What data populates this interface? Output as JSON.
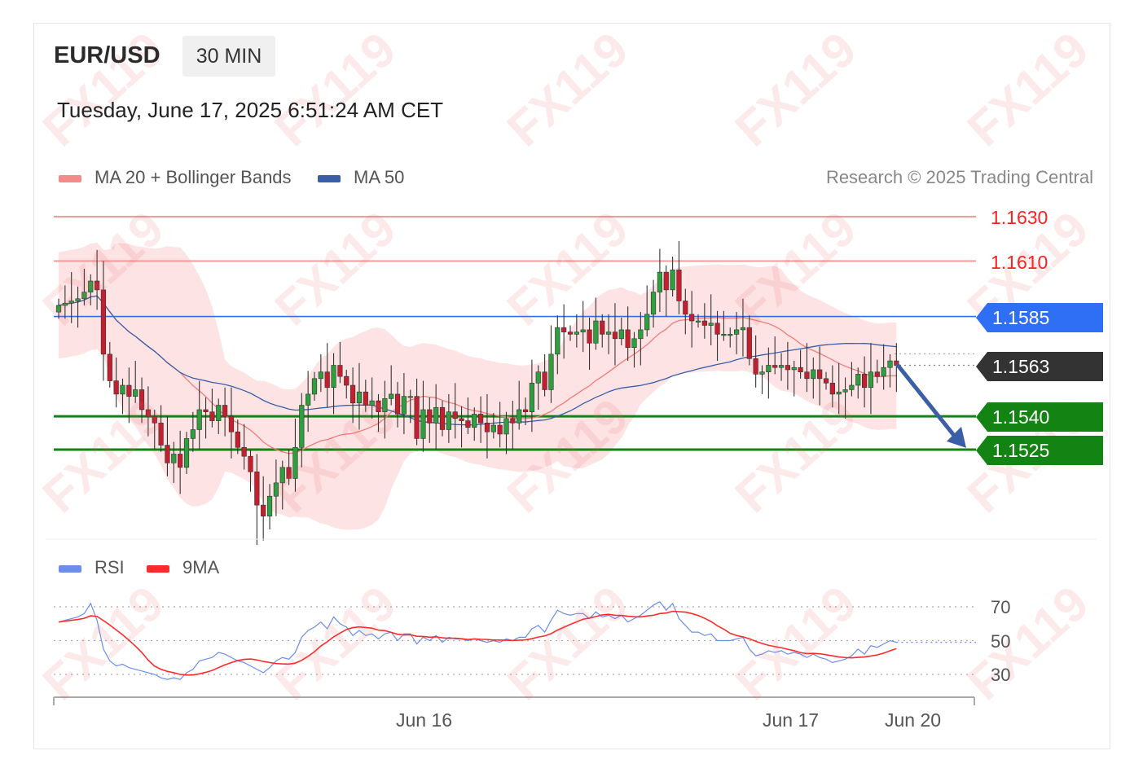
{
  "header": {
    "symbol": "EUR/USD",
    "timeframe": "30 MIN",
    "timestamp": "Tuesday, June 17, 2025 6:51:24 AM CET",
    "credit": "Research © 2025 Trading Central"
  },
  "legend": {
    "ma20_label": "MA 20 + Bollinger Bands",
    "ma50_label": "MA 50",
    "ma20_color": "#f38b8b",
    "ma50_color": "#3a5fa8"
  },
  "watermark": "FX119",
  "chart_data": [
    {
      "type": "candlestick",
      "title": "EUR/USD",
      "x_labels": [
        "Jun 16",
        "Jun 17",
        "Jun 20"
      ],
      "y_range": [
        1.1478,
        1.1635
      ],
      "levels": [
        {
          "label": "1.1630",
          "value": 1.163,
          "kind": "resistance",
          "color": "#ff3030"
        },
        {
          "label": "1.1610",
          "value": 1.161,
          "kind": "resistance",
          "color": "#ff3030"
        },
        {
          "label": "1.1585",
          "value": 1.1585,
          "kind": "pivot",
          "color": "#2f6ff5"
        },
        {
          "label": "1.1563",
          "value": 1.1563,
          "kind": "last",
          "color": "#333333"
        },
        {
          "label": "1.1540",
          "value": 1.154,
          "kind": "support",
          "color": "#138413"
        },
        {
          "label": "1.1525",
          "value": 1.1525,
          "kind": "support",
          "color": "#138413"
        }
      ],
      "closes": [
        1.159,
        1.1591,
        1.1592,
        1.1593,
        1.1596,
        1.1601,
        1.1597,
        1.1568,
        1.1556,
        1.155,
        1.1554,
        1.1549,
        1.1552,
        1.1543,
        1.154,
        1.1537,
        1.1527,
        1.1519,
        1.1523,
        1.1517,
        1.153,
        1.1534,
        1.1543,
        1.1542,
        1.1538,
        1.1545,
        1.154,
        1.1533,
        1.1526,
        1.1522,
        1.1515,
        1.15,
        1.1495,
        1.1504,
        1.151,
        1.1517,
        1.1512,
        1.1526,
        1.1545,
        1.155,
        1.1557,
        1.156,
        1.1553,
        1.1563,
        1.1558,
        1.1554,
        1.1546,
        1.1551,
        1.1545,
        1.1547,
        1.1542,
        1.1548,
        1.155,
        1.1541,
        1.1549,
        1.1549,
        1.153,
        1.1543,
        1.1537,
        1.1544,
        1.1534,
        1.1542,
        1.1539,
        1.1538,
        1.1535,
        1.1541,
        1.1537,
        1.1533,
        1.1536,
        1.1532,
        1.1539,
        1.1537,
        1.1543,
        1.1542,
        1.1555,
        1.156,
        1.1552,
        1.1568,
        1.158,
        1.1578,
        1.1577,
        1.1578,
        1.1579,
        1.1573,
        1.1583,
        1.1577,
        1.1578,
        1.1575,
        1.1579,
        1.1571,
        1.1575,
        1.1579,
        1.1586,
        1.1596,
        1.1605,
        1.1597,
        1.1606,
        1.1592,
        1.1586,
        1.1583,
        1.1583,
        1.1581,
        1.1582,
        1.1577,
        1.1577,
        1.1577,
        1.1579,
        1.158,
        1.1566,
        1.1559,
        1.156,
        1.1563,
        1.1562,
        1.1563,
        1.1561,
        1.1562,
        1.156,
        1.1557,
        1.1561,
        1.1557,
        1.1555,
        1.155,
        1.1551,
        1.1552,
        1.1554,
        1.1559,
        1.1553,
        1.156,
        1.1558,
        1.1562,
        1.1565,
        1.1563
      ],
      "series": [
        {
          "name": "MA 20 + Bollinger Bands",
          "color": "#f38b8b"
        },
        {
          "name": "MA 50",
          "color": "#3a5fa8"
        }
      ],
      "forecast": {
        "from": 1.1563,
        "to": 1.1528,
        "color": "#3a5fa8"
      }
    },
    {
      "type": "line",
      "title": "RSI",
      "y_ticks": [
        70,
        50,
        30
      ],
      "y_range": [
        20,
        75
      ],
      "series": [
        {
          "name": "RSI",
          "color": "#6b8ded"
        },
        {
          "name": "9MA",
          "color": "#ff2a2a"
        }
      ],
      "rsi": [
        61,
        62,
        63,
        64,
        66,
        72,
        62,
        45,
        38,
        35,
        36,
        34,
        33,
        32,
        31,
        30,
        28,
        27,
        28,
        27,
        31,
        33,
        38,
        39,
        40,
        43,
        42,
        40,
        38,
        37,
        35,
        33,
        31,
        34,
        38,
        40,
        39,
        43,
        52,
        56,
        58,
        61,
        57,
        64,
        60,
        58,
        53,
        56,
        53,
        54,
        51,
        54,
        55,
        50,
        54,
        54,
        48,
        52,
        50,
        53,
        49,
        52,
        51,
        51,
        50,
        51,
        50,
        49,
        50,
        49,
        51,
        50,
        52,
        52,
        57,
        59,
        55,
        62,
        68,
        66,
        65,
        66,
        66,
        63,
        67,
        64,
        65,
        63,
        65,
        61,
        63,
        65,
        68,
        71,
        73,
        68,
        72,
        63,
        59,
        55,
        55,
        53,
        54,
        50,
        50,
        50,
        51,
        52,
        45,
        41,
        42,
        44,
        43,
        44,
        42,
        43,
        42,
        40,
        42,
        40,
        39,
        37,
        38,
        39,
        41,
        45,
        42,
        47,
        46,
        48,
        50,
        49
      ]
    }
  ]
}
